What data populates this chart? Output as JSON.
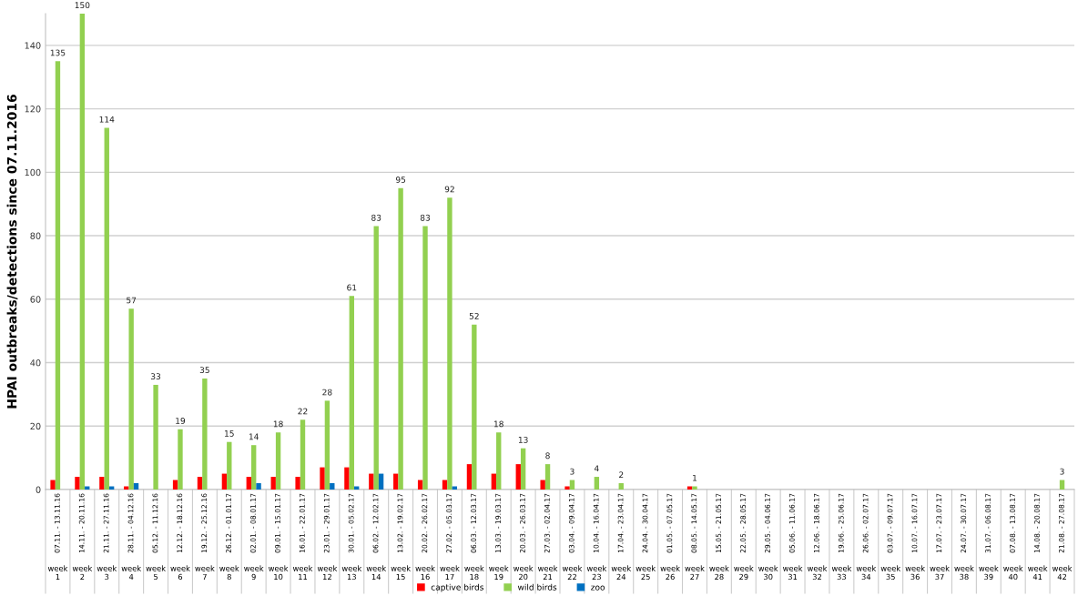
{
  "chart_data": {
    "type": "bar",
    "ylabel": "HPAI outbreaks/detections since 07.11.2016",
    "categories": [
      "07.11. - 13.11.16\nweek\n1",
      "14.11. - 20.11.16\nweek\n2",
      "21.11. - 27.11.16\nweek\n3",
      "28.11. - 04.12.16\nweek\n4",
      "05.12. - 11.12.16\nweek\n5",
      "12.12. - 18.12.16\nweek\n6",
      "19.12. - 25.12.16\nweek\n7",
      "26.12. - 01.01.17\nweek\n8",
      "02.01. - 08.01.17\nweek\n9",
      "09.01. - 15.01.17\nweek\n10",
      "16.01. - 22.01.17\nweek\n11",
      "23.01. - 29.01.17\nweek\n12",
      "30.01. - 05.02.17\nweek\n13",
      "06.02. - 12.02.17\nweek\n14",
      "13.02. - 19.02.17\nweek\n15",
      "20.02. - 26.02.17\nweek\n16",
      "27.02. - 05.03.17\nweek\n17",
      "06.03. - 12.03.17\nweek\n18",
      "13.03. - 19.03.17\nweek\n19",
      "20.03. - 26.03.17\nweek\n20",
      "27.03. - 02.04.17\nweek\n21",
      "03.04. - 09.04.17\nweek\n22",
      "10.04. - 16.04.17\nweek\n23",
      "17.04. - 23.04.17\nweek\n24",
      "24.04. - 30.04.17\nweek\n25",
      "01.05. - 07.05.17\nweek\n26",
      "08.05. - 14.05.17\nweek\n27",
      "15.05. - 21.05.17\nweek\n28",
      "22.05. - 28.05.17\nweek\n29",
      "29.05. - 04.06.17\nweek\n30",
      "05.06. - 11.06.17\nweek\n31",
      "12.06. - 18.06.17\nweek\n32",
      "19.06. - 25.06.17\nweek\n33",
      "26.06. - 02.07.17\nweek\n34",
      "03.07. - 09.07.17\nweek\n35",
      "10.07. - 16.07.17\nweek\n36",
      "17.07. - 23.07.17\nweek\n37",
      "24.07. - 30.07.17\nweek\n38",
      "31.07. - 06.08.17\nweek\n39",
      "07.08. - 13.08.17\nweek\n40",
      "14.08. - 20.08.17\nweek\n41",
      "21.08. - 27.08.17\nweek\n42"
    ],
    "series": [
      {
        "name": "captive birds",
        "color": "#ff0000",
        "values": [
          3,
          4,
          4,
          1,
          0,
          3,
          4,
          5,
          4,
          4,
          4,
          7,
          7,
          5,
          5,
          3,
          3,
          8,
          5,
          8,
          3,
          1,
          0,
          0,
          0,
          0,
          1,
          0,
          0,
          0,
          0,
          0,
          0,
          0,
          0,
          0,
          0,
          0,
          0,
          0,
          0,
          0
        ]
      },
      {
        "name": "wild birds",
        "color": "#92d050",
        "values": [
          135,
          150,
          114,
          57,
          33,
          19,
          35,
          15,
          14,
          18,
          22,
          28,
          61,
          83,
          95,
          83,
          92,
          52,
          18,
          13,
          8,
          3,
          4,
          2,
          0,
          0,
          1,
          0,
          0,
          0,
          0,
          0,
          0,
          0,
          0,
          0,
          0,
          0,
          0,
          0,
          0,
          3
        ],
        "value_labels": [
          "135",
          "150",
          "114",
          "57",
          "33",
          "19",
          "35",
          "15",
          "14",
          "18",
          "22",
          "28",
          "61",
          "83",
          "95",
          "83",
          "92",
          "52",
          "18",
          "13",
          "8",
          "3",
          "4",
          "2",
          null,
          null,
          "1",
          null,
          null,
          null,
          null,
          null,
          null,
          null,
          null,
          null,
          null,
          null,
          null,
          null,
          null,
          "3"
        ]
      },
      {
        "name": "zoo",
        "color": "#0070c0",
        "values": [
          0,
          1,
          1,
          2,
          0,
          0,
          0,
          0,
          2,
          0,
          0,
          2,
          1,
          5,
          0,
          0,
          1,
          0,
          0,
          0,
          0,
          0,
          0,
          0,
          0,
          0,
          0,
          0,
          0,
          0,
          0,
          0,
          0,
          0,
          0,
          0,
          0,
          0,
          0,
          0,
          0,
          0
        ]
      }
    ],
    "ylim": [
      0,
      150
    ],
    "yticks": [
      0,
      20,
      40,
      60,
      80,
      100,
      120,
      140
    ],
    "grid": "y",
    "legend": "bottom"
  }
}
